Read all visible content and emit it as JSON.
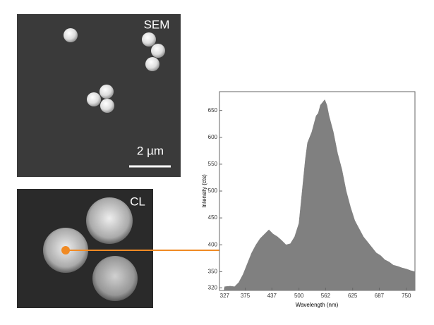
{
  "panels": {
    "sem_label": "SEM",
    "scale_bar": "2 µm",
    "cl_label": "CL"
  },
  "chart_data": {
    "type": "area",
    "x_label": "Wavelength (nm)",
    "y_label": "Intensity (cts)",
    "x": [
      327,
      340,
      350,
      360,
      370,
      380,
      390,
      400,
      410,
      420,
      430,
      440,
      450,
      460,
      470,
      480,
      490,
      500,
      505,
      510,
      515,
      520,
      525,
      530,
      535,
      540,
      545,
      550,
      555,
      560,
      565,
      570,
      580,
      590,
      600,
      610,
      620,
      630,
      640,
      650,
      660,
      670,
      680,
      690,
      700,
      710,
      720,
      730,
      740,
      750,
      760,
      770
    ],
    "values": [
      322,
      323,
      322,
      330,
      345,
      365,
      385,
      400,
      412,
      420,
      428,
      420,
      415,
      408,
      400,
      402,
      415,
      440,
      480,
      520,
      560,
      590,
      600,
      610,
      625,
      640,
      645,
      660,
      665,
      670,
      660,
      640,
      610,
      570,
      540,
      500,
      470,
      445,
      430,
      415,
      405,
      395,
      385,
      380,
      372,
      368,
      362,
      360,
      357,
      355,
      352,
      350
    ],
    "color": "#808080",
    "xlim": [
      315,
      770
    ],
    "ylim": [
      315,
      685
    ],
    "xticks": [
      327,
      375,
      437,
      500,
      562,
      625,
      687,
      750
    ],
    "yticks": [
      320,
      350,
      400,
      450,
      500,
      550,
      600,
      650
    ]
  }
}
